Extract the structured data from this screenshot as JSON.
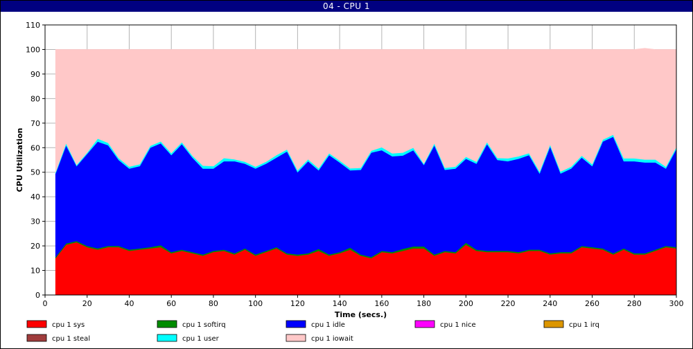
{
  "window": {
    "title": "04 - CPU 1"
  },
  "chart_data": {
    "type": "area",
    "stacked": true,
    "title": "",
    "xlabel": "Time (secs.)",
    "ylabel": "CPU Utilization",
    "xlim": [
      0,
      300
    ],
    "ylim": [
      0,
      110
    ],
    "xticks": [
      0,
      20,
      40,
      60,
      80,
      100,
      120,
      140,
      160,
      180,
      200,
      220,
      240,
      260,
      280,
      300
    ],
    "yticks": [
      0,
      10,
      20,
      30,
      40,
      50,
      60,
      70,
      80,
      90,
      100,
      110
    ],
    "grid": true,
    "legend_position": "bottom",
    "x": [
      5,
      10,
      15,
      20,
      25,
      30,
      35,
      40,
      45,
      50,
      55,
      60,
      65,
      70,
      75,
      80,
      85,
      90,
      95,
      100,
      105,
      110,
      115,
      120,
      125,
      130,
      135,
      140,
      145,
      150,
      155,
      160,
      165,
      170,
      175,
      180,
      185,
      190,
      195,
      200,
      205,
      210,
      215,
      220,
      225,
      230,
      235,
      240,
      245,
      250,
      255,
      260,
      265,
      270,
      275,
      280,
      285,
      290,
      295,
      300
    ],
    "series": [
      {
        "name": "cpu 1 sys",
        "color": "#ff0000",
        "values": [
          15,
          20.5,
          21.5,
          19.5,
          18.5,
          19.5,
          19.5,
          18,
          18.5,
          19,
          19.5,
          17,
          18,
          17,
          16,
          17.5,
          18,
          16.5,
          18.5,
          16,
          17.5,
          19,
          16.5,
          16,
          16.5,
          18,
          16,
          17,
          18.5,
          16,
          15,
          17.5,
          17,
          18,
          19,
          19,
          16,
          17.5,
          17,
          20.5,
          18,
          17.5,
          17.5,
          17.5,
          17,
          18,
          18,
          16.5,
          17,
          17,
          19.5,
          19,
          18.5,
          16.5,
          18.5,
          16.5,
          16.5,
          18,
          19.5,
          19
        ]
      },
      {
        "name": "cpu 1 softirq",
        "color": "#008c00",
        "values": [
          0.5,
          0.5,
          0.5,
          0.5,
          0.5,
          0.5,
          0.5,
          0.5,
          0.5,
          0.5,
          0.8,
          0.5,
          0.5,
          0.5,
          0.5,
          0.5,
          0.5,
          0.5,
          0.5,
          0.5,
          0.5,
          0.5,
          0.5,
          0.5,
          0.5,
          0.8,
          0.5,
          0.5,
          0.8,
          0.5,
          0.5,
          0.5,
          0.5,
          0.8,
          0.8,
          0.8,
          0.5,
          0.5,
          0.5,
          0.8,
          0.5,
          0.5,
          0.5,
          0.5,
          0.5,
          0.5,
          0.5,
          0.5,
          0.5,
          0.5,
          0.5,
          0.5,
          0.5,
          0.5,
          0.5,
          0.5,
          0.5,
          0.5,
          0.5,
          0.5
        ]
      },
      {
        "name": "cpu 1 idle",
        "color": "#0000ff",
        "values": [
          34,
          40,
          30.5,
          37.5,
          43.5,
          41,
          35,
          33,
          33.5,
          40.5,
          41.5,
          39.5,
          43,
          38.5,
          35,
          33.5,
          36,
          37.5,
          34.5,
          35,
          35.5,
          36.5,
          41.5,
          33.5,
          37.5,
          32,
          40.5,
          36.5,
          31.5,
          34.5,
          42.5,
          41,
          39,
          38,
          39.2,
          33.2,
          44.5,
          33,
          34,
          34.2,
          35,
          43.5,
          37,
          36.5,
          38,
          38.5,
          31,
          43.5,
          32,
          34,
          36,
          33,
          43.5,
          47.5,
          35.5,
          37.5,
          37,
          35.5,
          31.5,
          40
        ]
      },
      {
        "name": "cpu 1 nice",
        "color": "#ff00ff",
        "values": [
          0,
          0,
          0,
          0,
          0,
          0,
          0,
          0,
          0,
          0,
          0,
          0,
          0,
          0,
          0,
          0,
          0,
          0,
          0,
          0,
          0,
          0,
          0,
          0,
          0,
          0,
          0,
          0,
          0,
          0,
          0,
          0,
          0,
          0,
          0,
          0,
          0,
          0,
          0,
          0,
          0,
          0,
          0,
          0,
          0,
          0,
          0,
          0,
          0,
          0,
          0,
          0,
          0,
          0,
          0,
          0,
          0,
          0,
          0,
          0
        ]
      },
      {
        "name": "cpu 1 irq",
        "color": "#dc9600",
        "values": [
          0,
          0,
          0,
          0,
          0,
          0,
          0,
          0,
          0,
          0,
          0,
          0,
          0,
          0,
          0,
          0,
          0,
          0,
          0,
          0,
          0,
          0,
          0,
          0,
          0,
          0,
          0,
          0,
          0,
          0,
          0,
          0,
          0,
          0,
          0,
          0,
          0,
          0,
          0,
          0,
          0,
          0,
          0,
          0,
          0,
          0,
          0,
          0,
          0,
          0,
          0,
          0,
          0,
          0,
          0,
          0,
          0,
          0,
          0,
          0
        ]
      },
      {
        "name": "cpu 1 steal",
        "color": "#a03c3c",
        "values": [
          0,
          0,
          0,
          0,
          0,
          0,
          0,
          0,
          0,
          0,
          0,
          0,
          0,
          0,
          0,
          0,
          0,
          0,
          0,
          0,
          0,
          0,
          0,
          0,
          0,
          0,
          0,
          0,
          0,
          0,
          0,
          0,
          0,
          0,
          0,
          0,
          0,
          0,
          0,
          0,
          0,
          0,
          0,
          0,
          0,
          0,
          0,
          0,
          0,
          0,
          0,
          0,
          0,
          0,
          0,
          0,
          0,
          0,
          0,
          0
        ]
      },
      {
        "name": "cpu 1 user",
        "color": "#00ffff",
        "values": [
          0.5,
          0.8,
          0.5,
          0.5,
          1.2,
          1,
          0.8,
          0.8,
          0.8,
          0.8,
          0.8,
          0.8,
          0.8,
          0.8,
          1.2,
          1,
          1.3,
          0.8,
          0.8,
          0.8,
          0.8,
          1,
          0.8,
          0.8,
          0.8,
          0.8,
          0.8,
          0.8,
          0.8,
          0.8,
          0.8,
          1.2,
          1.2,
          1.2,
          1,
          0.5,
          0.8,
          0.8,
          0.8,
          0.8,
          0.8,
          0.8,
          0.8,
          1.2,
          1,
          0.8,
          0.8,
          0.8,
          0.8,
          0.8,
          0.8,
          0.8,
          0.8,
          0.8,
          1.2,
          1.2,
          1.2,
          1.2,
          0.8,
          0.8
        ]
      },
      {
        "name": "cpu 1 iowait",
        "color": "#ffc8c8",
        "values": [
          50,
          38.2,
          47,
          42,
          36.3,
          38,
          44.2,
          47.7,
          46.7,
          39.2,
          37.4,
          42.2,
          37.7,
          43.2,
          47.3,
          47.5,
          44.2,
          44.7,
          45.7,
          47.7,
          45.7,
          43,
          40.7,
          49.2,
          44.7,
          48.4,
          42.2,
          45.2,
          48.4,
          48.2,
          41.2,
          39.8,
          42.3,
          42,
          40,
          46.5,
          38.2,
          48.2,
          47.7,
          43.7,
          45.7,
          37.7,
          44.2,
          44.3,
          43.5,
          42.2,
          49.7,
          38.7,
          49.7,
          47.7,
          43.2,
          46.7,
          36.7,
          34.7,
          44.3,
          44.3,
          45.3,
          44.8,
          47.7,
          39.7
        ]
      }
    ]
  }
}
